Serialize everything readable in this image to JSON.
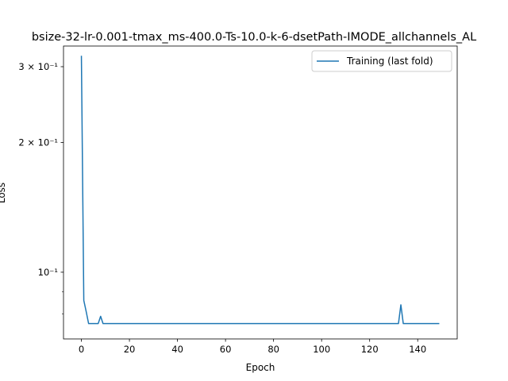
{
  "chart_data": {
    "type": "line",
    "title": "bsize-32-lr-0.001-tmax_ms-400.0-Ts-10.0-k-6-dsetPath-IMODE_allchannels_AL",
    "xlabel": "Epoch",
    "ylabel": "Loss",
    "xlim": [
      -7.45,
      156.45
    ],
    "ylim": [
      0.07,
      0.335
    ],
    "yscale": "log",
    "x_ticks": [
      0,
      20,
      40,
      60,
      80,
      100,
      120,
      140
    ],
    "y_major_ticks": [
      {
        "value": 0.1,
        "label": "10⁻¹"
      },
      {
        "value": 0.2,
        "label": "2 × 10⁻¹"
      },
      {
        "value": 0.3,
        "label": "3 × 10⁻¹"
      }
    ],
    "y_minor_ticks": [
      0.08,
      0.09
    ],
    "grid": false,
    "legend_position": "top-right",
    "series": [
      {
        "name": "Training (last fold)",
        "color": "#1f77b4",
        "points": [
          [
            0,
            0.318
          ],
          [
            1,
            0.086
          ],
          [
            2,
            0.081
          ],
          [
            3,
            0.076
          ],
          [
            4,
            0.076
          ],
          [
            5,
            0.076
          ],
          [
            6,
            0.076
          ],
          [
            7,
            0.076
          ],
          [
            8,
            0.079
          ],
          [
            9,
            0.076
          ],
          [
            132,
            0.076
          ],
          [
            133,
            0.084
          ],
          [
            134,
            0.076
          ],
          [
            149,
            0.076
          ]
        ]
      }
    ]
  }
}
